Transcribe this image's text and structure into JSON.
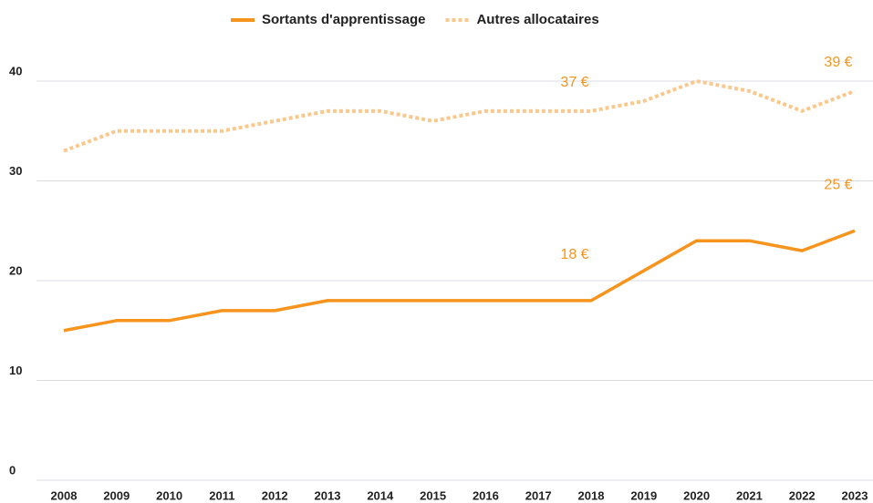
{
  "chart_data": {
    "type": "line",
    "categories": [
      "2008",
      "2009",
      "2010",
      "2011",
      "2012",
      "2013",
      "2014",
      "2015",
      "2016",
      "2017",
      "2018",
      "2019",
      "2020",
      "2021",
      "2022",
      "2023"
    ],
    "series": [
      {
        "name": "Sortants d'apprentissage",
        "color": "#f7941d",
        "style": "solid",
        "values": [
          15,
          16,
          16,
          17,
          17,
          18,
          18,
          18,
          18,
          18,
          18,
          21,
          24,
          24,
          23,
          25
        ],
        "value_labels": [
          null,
          null,
          null,
          null,
          null,
          null,
          null,
          null,
          null,
          null,
          "18 €",
          null,
          null,
          null,
          null,
          "25 €"
        ]
      },
      {
        "name": "Autres allocataires",
        "color": "#f9c88c",
        "style": "dotted",
        "values": [
          33,
          35,
          35,
          35,
          36,
          37,
          37,
          36,
          37,
          37,
          37,
          38,
          40,
          39,
          37,
          39
        ],
        "value_labels": [
          null,
          null,
          null,
          null,
          null,
          null,
          null,
          null,
          null,
          null,
          "37 €",
          null,
          null,
          null,
          null,
          "39 €"
        ]
      }
    ],
    "ylim": [
      0,
      40
    ],
    "yticks": [
      0,
      10,
      20,
      30,
      40
    ],
    "grid": true,
    "legend": "top"
  }
}
